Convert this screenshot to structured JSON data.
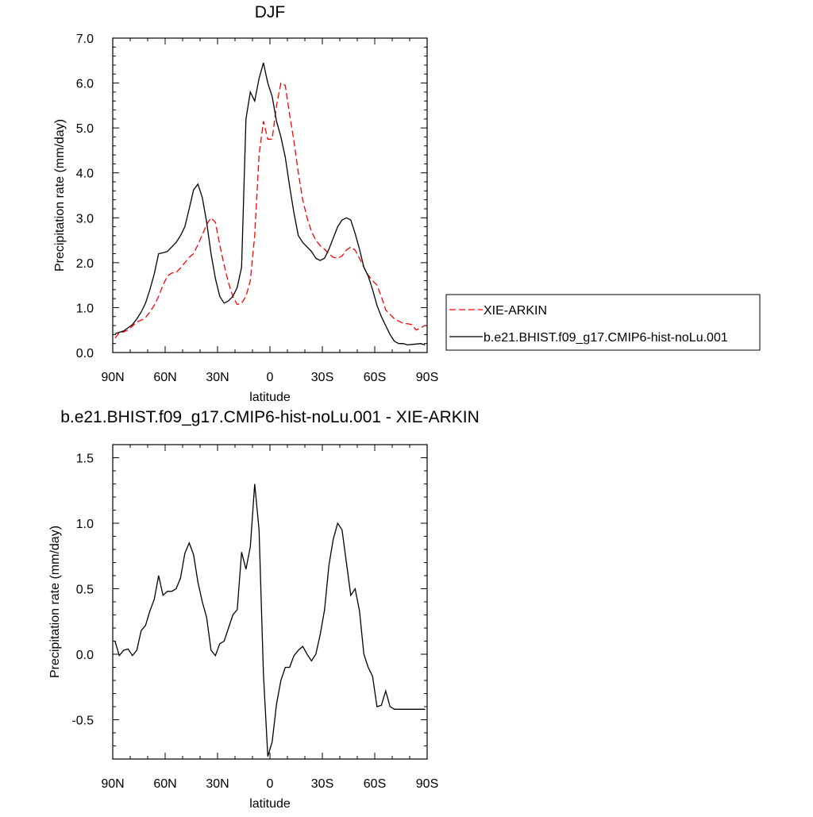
{
  "chart_data": [
    {
      "type": "line",
      "title": "DJF",
      "xlabel": "latitude",
      "ylabel": "Precipitation rate (mm/day)",
      "xlim": [
        -90,
        90
      ],
      "ylim": [
        0,
        7
      ],
      "x_ticks": [
        {
          "value": -90,
          "label": "90N"
        },
        {
          "value": -60,
          "label": "60N"
        },
        {
          "value": -30,
          "label": "30N"
        },
        {
          "value": 0,
          "label": "0"
        },
        {
          "value": 30,
          "label": "30S"
        },
        {
          "value": 60,
          "label": "60S"
        },
        {
          "value": 90,
          "label": "90S"
        }
      ],
      "y_ticks": [
        {
          "value": 0,
          "label": "0.0"
        },
        {
          "value": 1,
          "label": "1.0"
        },
        {
          "value": 2,
          "label": "2.0"
        },
        {
          "value": 3,
          "label": "3.0"
        },
        {
          "value": 4,
          "label": "4.0"
        },
        {
          "value": 5,
          "label": "5.0"
        },
        {
          "value": 6,
          "label": "6.0"
        },
        {
          "value": 7,
          "label": "7.0"
        }
      ],
      "legend_placement": "right",
      "series": [
        {
          "name": "XIE-ARKIN",
          "color": "#ff0000",
          "dash": "dashed",
          "x": [
            -88.75,
            -86.25,
            -83.75,
            -81.25,
            -78.75,
            -76.25,
            -73.75,
            -71.25,
            -68.75,
            -66.25,
            -63.75,
            -61.25,
            -58.75,
            -56.25,
            -53.75,
            -51.25,
            -48.75,
            -46.25,
            -43.75,
            -41.25,
            -38.75,
            -36.25,
            -33.75,
            -31.25,
            -28.75,
            -26.25,
            -23.75,
            -21.25,
            -18.75,
            -16.25,
            -13.75,
            -11.25,
            -8.75,
            -6.25,
            -3.75,
            -1.25,
            1.25,
            3.75,
            6.25,
            8.75,
            11.25,
            13.75,
            16.25,
            18.75,
            21.25,
            23.75,
            26.25,
            28.75,
            31.25,
            33.75,
            36.25,
            38.75,
            41.25,
            43.75,
            46.25,
            48.75,
            51.25,
            53.75,
            56.25,
            58.75,
            61.25,
            63.75,
            66.25,
            68.75,
            71.25,
            73.75,
            76.25,
            78.75,
            81.25,
            83.75,
            86.25,
            88.75
          ],
          "y": [
            0.32,
            0.44,
            0.46,
            0.5,
            0.59,
            0.68,
            0.72,
            0.78,
            0.9,
            1.05,
            1.25,
            1.5,
            1.7,
            1.77,
            1.78,
            1.88,
            2.0,
            2.12,
            2.2,
            2.4,
            2.62,
            2.85,
            3.0,
            2.9,
            2.4,
            1.95,
            1.55,
            1.25,
            1.07,
            1.1,
            1.25,
            1.6,
            2.6,
            4.4,
            5.15,
            4.75,
            4.75,
            5.5,
            6.0,
            5.95,
            5.3,
            4.7,
            4.0,
            3.4,
            3.0,
            2.7,
            2.5,
            2.38,
            2.3,
            2.2,
            2.12,
            2.1,
            2.15,
            2.28,
            2.35,
            2.28,
            2.1,
            1.9,
            1.72,
            1.6,
            1.5,
            1.25,
            0.95,
            0.85,
            0.75,
            0.7,
            0.65,
            0.64,
            0.62,
            0.5,
            0.55,
            0.6
          ]
        },
        {
          "name": "b.e21.BHIST.f09_g17.CMIP6-hist-noLu.001",
          "color": "#000000",
          "dash": "solid",
          "x": [
            -88.75,
            -86.25,
            -83.75,
            -81.25,
            -78.75,
            -76.25,
            -73.75,
            -71.25,
            -68.75,
            -66.25,
            -63.75,
            -61.25,
            -58.75,
            -56.25,
            -53.75,
            -51.25,
            -48.75,
            -46.25,
            -43.75,
            -41.25,
            -38.75,
            -36.25,
            -33.75,
            -31.25,
            -28.75,
            -26.25,
            -23.75,
            -21.25,
            -18.75,
            -16.25,
            -13.75,
            -11.25,
            -8.75,
            -6.25,
            -3.75,
            -1.25,
            1.25,
            3.75,
            6.25,
            8.75,
            11.25,
            13.75,
            16.25,
            18.75,
            21.25,
            23.75,
            26.25,
            28.75,
            31.25,
            33.75,
            36.25,
            38.75,
            41.25,
            43.75,
            46.25,
            48.75,
            51.25,
            53.75,
            56.25,
            58.75,
            61.25,
            63.75,
            66.25,
            68.75,
            71.25,
            73.75,
            76.25,
            78.75,
            81.25,
            83.75,
            86.25,
            88.75
          ],
          "y": [
            0.42,
            0.45,
            0.48,
            0.55,
            0.62,
            0.75,
            0.9,
            1.1,
            1.4,
            1.75,
            2.2,
            2.22,
            2.25,
            2.35,
            2.45,
            2.6,
            2.8,
            3.2,
            3.62,
            3.75,
            3.45,
            2.9,
            2.2,
            1.65,
            1.25,
            1.1,
            1.15,
            1.25,
            1.45,
            1.9,
            5.2,
            5.8,
            5.6,
            6.1,
            6.45,
            6.0,
            5.7,
            5.15,
            4.8,
            4.35,
            3.7,
            3.1,
            2.6,
            2.45,
            2.35,
            2.25,
            2.1,
            2.05,
            2.1,
            2.3,
            2.55,
            2.8,
            2.95,
            3.0,
            2.95,
            2.65,
            2.3,
            1.9,
            1.7,
            1.4,
            1.05,
            0.8,
            0.6,
            0.4,
            0.25,
            0.2,
            0.2,
            0.17,
            0.18,
            0.19,
            0.2,
            0.17
          ]
        }
      ]
    },
    {
      "type": "line",
      "title": "b.e21.BHIST.f09_g17.CMIP6-hist-noLu.001 - XIE-ARKIN",
      "xlabel": "latitude",
      "ylabel": "Precipitation rate (mm/day)",
      "xlim": [
        -90,
        90
      ],
      "ylim": [
        -0.8,
        1.6
      ],
      "x_ticks": [
        {
          "value": -90,
          "label": "90N"
        },
        {
          "value": -60,
          "label": "60N"
        },
        {
          "value": -30,
          "label": "30N"
        },
        {
          "value": 0,
          "label": "0"
        },
        {
          "value": 30,
          "label": "30S"
        },
        {
          "value": 60,
          "label": "60S"
        },
        {
          "value": 90,
          "label": "90S"
        }
      ],
      "y_ticks": [
        {
          "value": -0.5,
          "label": "-0.5"
        },
        {
          "value": 0,
          "label": "0.0"
        },
        {
          "value": 0.5,
          "label": "0.5"
        },
        {
          "value": 1.0,
          "label": "1.0"
        },
        {
          "value": 1.5,
          "label": "1.5"
        }
      ],
      "series": [
        {
          "color": "#000000",
          "dash": "solid",
          "x": [
            -88.75,
            -86.25,
            -83.75,
            -81.25,
            -78.75,
            -76.25,
            -73.75,
            -71.25,
            -68.75,
            -66.25,
            -63.75,
            -61.25,
            -58.75,
            -56.25,
            -53.75,
            -51.25,
            -48.75,
            -46.25,
            -43.75,
            -41.25,
            -38.75,
            -36.25,
            -33.75,
            -31.25,
            -28.75,
            -26.25,
            -23.75,
            -21.25,
            -18.75,
            -16.25,
            -13.75,
            -11.25,
            -8.75,
            -6.25,
            -3.75,
            -1.25,
            1.25,
            3.75,
            6.25,
            8.75,
            11.25,
            13.75,
            16.25,
            18.75,
            21.25,
            23.75,
            26.25,
            28.75,
            31.25,
            33.75,
            36.25,
            38.75,
            41.25,
            43.75,
            46.25,
            48.75,
            51.25,
            53.75,
            56.25,
            58.75,
            61.25,
            63.75,
            66.25,
            68.75,
            71.25,
            73.75,
            76.25,
            78.75,
            81.25,
            83.75,
            86.25,
            88.75
          ],
          "y": [
            0.1,
            -0.01,
            0.03,
            0.04,
            -0.01,
            0.03,
            0.18,
            0.22,
            0.33,
            0.42,
            0.6,
            0.45,
            0.48,
            0.48,
            0.5,
            0.58,
            0.77,
            0.85,
            0.76,
            0.55,
            0.4,
            0.28,
            0.03,
            -0.01,
            0.08,
            0.1,
            0.2,
            0.3,
            0.34,
            0.78,
            0.65,
            0.82,
            1.3,
            0.95,
            -0.15,
            -0.78,
            -0.67,
            -0.38,
            -0.2,
            -0.1,
            -0.1,
            -0.01,
            0.03,
            0.06,
            0.0,
            -0.05,
            0.0,
            0.15,
            0.34,
            0.68,
            0.88,
            1.0,
            0.95,
            0.7,
            0.45,
            0.5,
            0.33,
            0.0,
            -0.1,
            -0.17,
            -0.4,
            -0.39,
            -0.28,
            -0.4,
            -0.42,
            -0.42,
            -0.42,
            -0.42,
            -0.42,
            -0.42,
            -0.42,
            -0.42
          ]
        }
      ]
    }
  ]
}
